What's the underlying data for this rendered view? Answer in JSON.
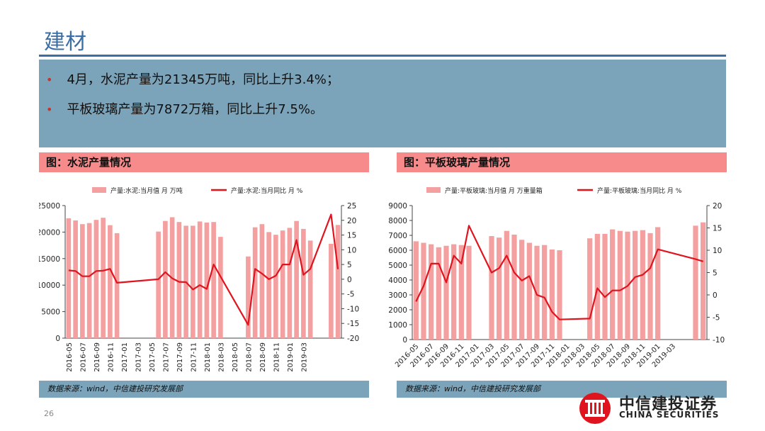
{
  "slide": {
    "title": "建材",
    "bullets": [
      "4月，水泥产量为21345万吨，同比上升3.4%；",
      "平板玻璃产量为7872万箱，同比上升7.5%。"
    ],
    "page_number": "26",
    "logo": {
      "cn": "中信建投证券",
      "en": "CHINA SECURITIES"
    }
  },
  "charts": [
    {
      "header": "图：水泥产量情况",
      "source": "数据来源：wind，中信建投研究发展部"
    },
    {
      "header": "图：平板玻璃产量情况",
      "source": "数据来源：wind，中信建投研究发展部"
    }
  ],
  "colors": {
    "bar": "#f4a0a0",
    "line": "#e0141e",
    "accent": "#3b6ea5",
    "box": "#7ba3b9",
    "header": "#f78a8a"
  },
  "chart_data": [
    {
      "type": "bar",
      "legend": [
        "产量:水泥:当月值 月 万吨",
        "产量:水泥:当月同比 月 %"
      ],
      "x_ticks": [
        "2016-05",
        "2016-07",
        "2016-09",
        "2016-11",
        "2017-01",
        "2017-03",
        "2017-05",
        "2017-07",
        "2017-09",
        "2017-11",
        "2018-01",
        "2018-03",
        "2018-05",
        "2018-07",
        "2018-09",
        "2018-11",
        "2019-01",
        "2019-03"
      ],
      "y_left": {
        "min": 0,
        "max": 25000,
        "ticks": [
          0,
          5000,
          10000,
          15000,
          20000,
          25000
        ]
      },
      "y_right": {
        "min": -20,
        "max": 25,
        "ticks": [
          -20,
          -15,
          -10,
          -5,
          0,
          5,
          10,
          15,
          20,
          25
        ]
      },
      "series": [
        {
          "name": "产量:水泥:当月值 月 万吨",
          "axis": "left",
          "kind": "bar",
          "values": [
            22600,
            22200,
            21500,
            21700,
            22300,
            22700,
            21300,
            19800,
            null,
            null,
            null,
            null,
            null,
            20100,
            22100,
            22800,
            21900,
            21200,
            21200,
            22000,
            21800,
            21900,
            19100,
            null,
            null,
            null,
            15400,
            20900,
            21500,
            20000,
            19500,
            20300,
            20800,
            22100,
            20600,
            18400,
            null,
            null,
            17800,
            21345
          ]
        },
        {
          "name": "产量:水泥:当月同比 月 %",
          "axis": "right",
          "kind": "line",
          "values": [
            3.0,
            2.8,
            1.0,
            1.0,
            2.8,
            2.9,
            3.5,
            -1.2,
            null,
            null,
            null,
            null,
            null,
            0.0,
            2.4,
            0.3,
            -0.9,
            -1.0,
            -3.5,
            -2.0,
            -3.3,
            5.0,
            null,
            null,
            null,
            null,
            -15.5,
            3.5,
            1.9,
            0.0,
            1.2,
            5.0,
            5.0,
            13.3,
            1.5,
            3.5,
            null,
            null,
            22.0,
            3.4
          ]
        }
      ]
    },
    {
      "type": "bar",
      "legend": [
        "产量:平板玻璃:当月值 月 万重量箱",
        "产量:平板玻璃:当月同比 月 %"
      ],
      "x_ticks": [
        "2016-05",
        "2016-07",
        "2016-09",
        "2016-11",
        "2017-01",
        "2017-03",
        "2017-05",
        "2017-07",
        "2017-09",
        "2017-11",
        "2018-01",
        "2018-03",
        "2018-05",
        "2018-07",
        "2018-09",
        "2018-11",
        "2019-01",
        "2019-03"
      ],
      "y_left": {
        "min": 0,
        "max": 9000,
        "ticks": [
          0,
          1000,
          2000,
          3000,
          4000,
          5000,
          6000,
          7000,
          8000,
          9000
        ]
      },
      "y_right": {
        "min": -10,
        "max": 20,
        "ticks": [
          -10,
          -5,
          0,
          5,
          10,
          15,
          20
        ]
      },
      "series": [
        {
          "name": "产量:平板玻璃:当月值 月 万重量箱",
          "axis": "left",
          "kind": "bar",
          "values": [
            6600,
            6500,
            6400,
            6200,
            6300,
            6400,
            6350,
            6300,
            null,
            null,
            6950,
            6850,
            7300,
            7050,
            6700,
            6500,
            6300,
            6350,
            6050,
            6000,
            null,
            null,
            null,
            6800,
            7100,
            7100,
            7400,
            7300,
            7250,
            7300,
            7350,
            7150,
            7550,
            null,
            null,
            null,
            null,
            7650,
            7872
          ]
        },
        {
          "name": "产量:平板玻璃:当月同比 月 %",
          "axis": "right",
          "kind": "line",
          "values": [
            -1.5,
            2.0,
            7.0,
            7.0,
            2.8,
            8.8,
            7.0,
            15.5,
            null,
            null,
            5.0,
            6.0,
            8.8,
            5.0,
            3.2,
            4.2,
            0.0,
            -0.6,
            -3.8,
            -5.5,
            null,
            null,
            null,
            -5.3,
            1.5,
            -0.5,
            1.0,
            1.0,
            2.0,
            4.0,
            4.5,
            6.0,
            10.2,
            null,
            null,
            null,
            null,
            8.0,
            7.5
          ]
        }
      ]
    }
  ]
}
